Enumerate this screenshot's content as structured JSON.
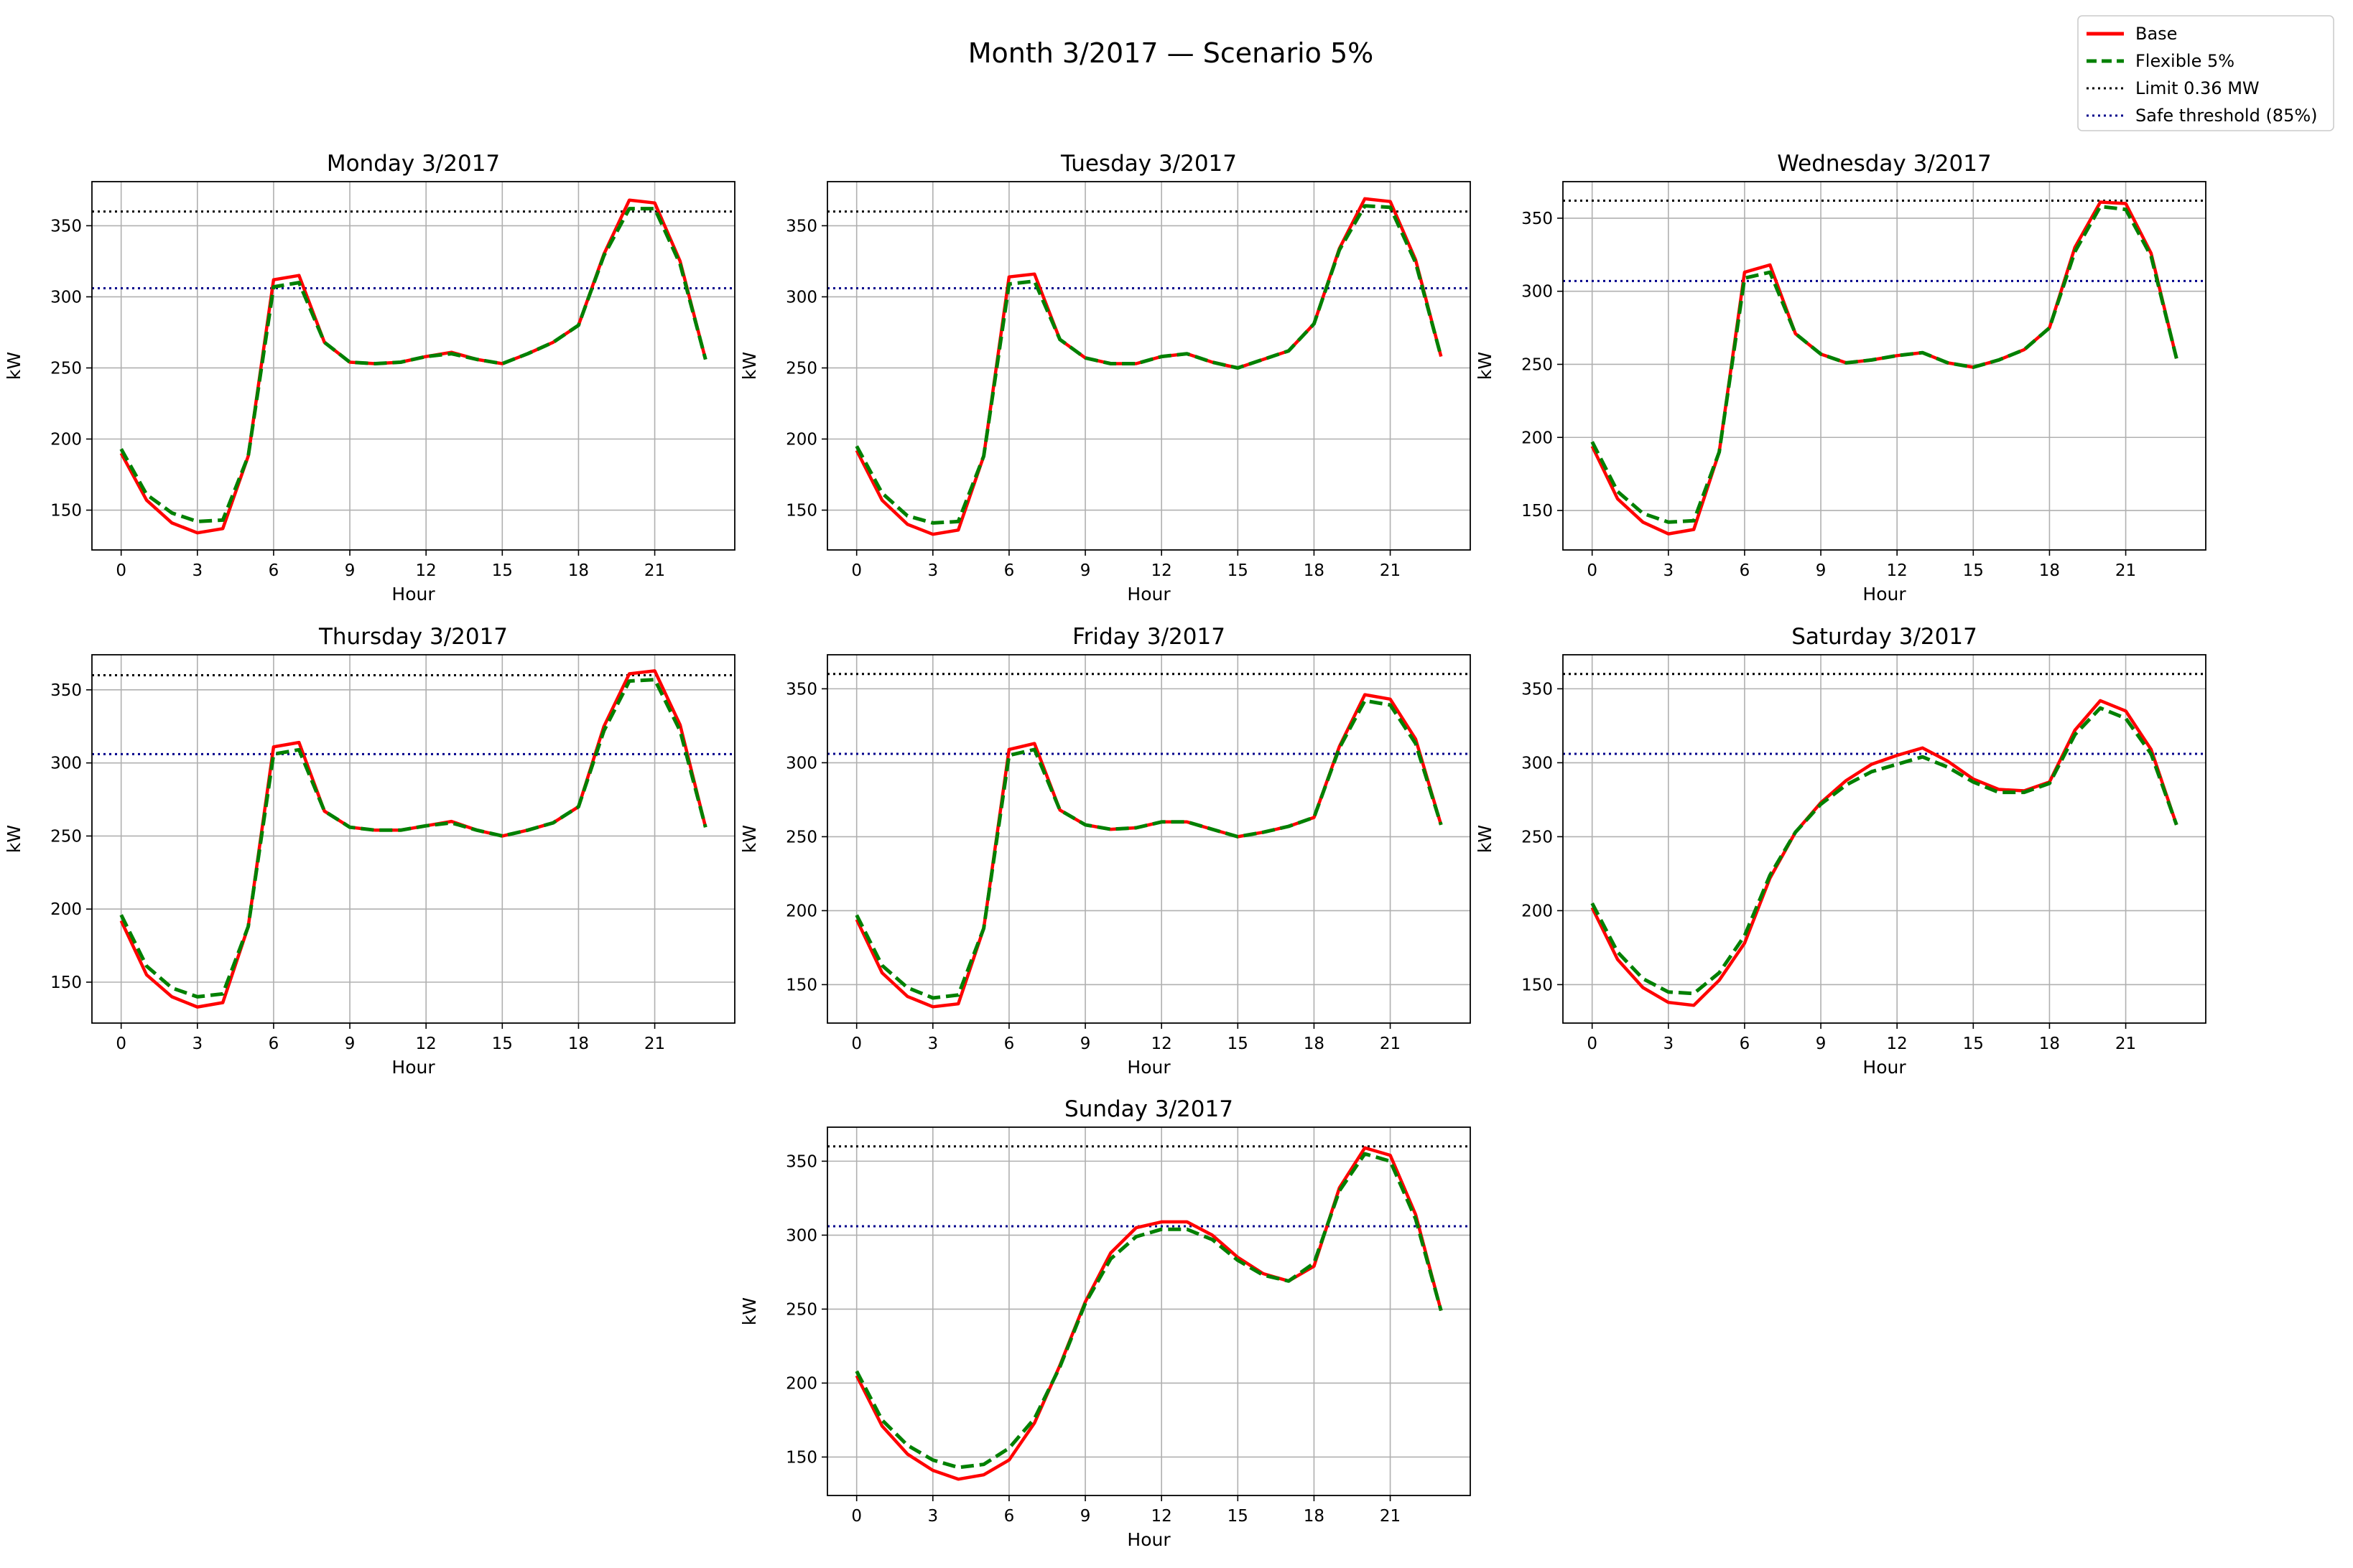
{
  "figure": {
    "title": "Month 3/2017 — Scenario 5%",
    "legend": {
      "placement": "top-right",
      "entries": [
        {
          "label": "Base",
          "color": "#ff0000",
          "style": "solid"
        },
        {
          "label": "Flexible 5%",
          "color": "#008000",
          "style": "dashed"
        },
        {
          "label": "Limit 0.36 MW",
          "color": "#000000",
          "style": "dotted"
        },
        {
          "label": "Safe threshold (85%)",
          "color": "#00008b",
          "style": "dotted"
        }
      ]
    }
  },
  "chart_data": [
    {
      "type": "line",
      "title": "Monday 3/2017",
      "xlabel": "Hour",
      "ylabel": "kW",
      "x": [
        0,
        1,
        2,
        3,
        4,
        5,
        6,
        7,
        8,
        9,
        10,
        11,
        12,
        13,
        14,
        15,
        16,
        17,
        18,
        19,
        20,
        21,
        22,
        23
      ],
      "xticks": [
        0,
        3,
        6,
        9,
        12,
        15,
        18,
        21
      ],
      "yticks": [
        150,
        200,
        250,
        300,
        350
      ],
      "xlim": [
        -1.15,
        24.15
      ],
      "ylim": [
        122,
        381
      ],
      "grid": true,
      "reference_lines": [
        {
          "name": "Limit 0.36 MW",
          "y": 360
        },
        {
          "name": "Safe threshold (85%)",
          "y": 306
        }
      ],
      "series": [
        {
          "name": "Base",
          "values": [
            190,
            157,
            141,
            134,
            137,
            188,
            312,
            315,
            268,
            254,
            253,
            254,
            258,
            261,
            256,
            253,
            260,
            268,
            280,
            330,
            368,
            366,
            325,
            256
          ]
        },
        {
          "name": "Flexible 5%",
          "values": [
            193,
            161,
            148,
            142,
            143,
            188,
            307,
            310,
            268,
            254,
            253,
            254,
            258,
            260,
            256,
            253,
            260,
            268,
            280,
            329,
            362,
            362,
            323,
            256
          ]
        }
      ]
    },
    {
      "type": "line",
      "title": "Tuesday 3/2017",
      "xlabel": "Hour",
      "ylabel": "kW",
      "x": [
        0,
        1,
        2,
        3,
        4,
        5,
        6,
        7,
        8,
        9,
        10,
        11,
        12,
        13,
        14,
        15,
        16,
        17,
        18,
        19,
        20,
        21,
        22,
        23
      ],
      "xticks": [
        0,
        3,
        6,
        9,
        12,
        15,
        18,
        21
      ],
      "yticks": [
        150,
        200,
        250,
        300,
        350
      ],
      "xlim": [
        -1.15,
        24.15
      ],
      "ylim": [
        122,
        381
      ],
      "grid": true,
      "reference_lines": [
        {
          "name": "Limit 0.36 MW",
          "y": 360
        },
        {
          "name": "Safe threshold (85%)",
          "y": 306
        }
      ],
      "series": [
        {
          "name": "Base",
          "values": [
            192,
            157,
            140,
            133,
            136,
            188,
            314,
            316,
            270,
            257,
            253,
            253,
            258,
            260,
            254,
            250,
            256,
            262,
            281,
            334,
            369,
            367,
            326,
            258
          ]
        },
        {
          "name": "Flexible 5%",
          "values": [
            195,
            162,
            146,
            141,
            142,
            188,
            309,
            311,
            270,
            257,
            253,
            253,
            258,
            260,
            254,
            250,
            256,
            262,
            281,
            333,
            364,
            363,
            324,
            258
          ]
        }
      ]
    },
    {
      "type": "line",
      "title": "Wednesday 3/2017",
      "xlabel": "Hour",
      "ylabel": "kW",
      "x": [
        0,
        1,
        2,
        3,
        4,
        5,
        6,
        7,
        8,
        9,
        10,
        11,
        12,
        13,
        14,
        15,
        16,
        17,
        18,
        19,
        20,
        21,
        22,
        23
      ],
      "xticks": [
        0,
        3,
        6,
        9,
        12,
        15,
        18,
        21
      ],
      "yticks": [
        150,
        200,
        250,
        300,
        350
      ],
      "xlim": [
        -1.15,
        24.15
      ],
      "ylim": [
        123,
        375
      ],
      "grid": true,
      "reference_lines": [
        {
          "name": "Limit 0.36 MW",
          "y": 362
        },
        {
          "name": "Safe threshold (85%)",
          "y": 307
        }
      ],
      "series": [
        {
          "name": "Base",
          "values": [
            194,
            158,
            142,
            134,
            137,
            190,
            313,
            318,
            271,
            257,
            251,
            253,
            256,
            258,
            251,
            248,
            253,
            260,
            275,
            330,
            361,
            360,
            326,
            254
          ]
        },
        {
          "name": "Flexible 5%",
          "values": [
            197,
            163,
            148,
            142,
            143,
            190,
            309,
            313,
            271,
            257,
            251,
            253,
            256,
            258,
            251,
            248,
            253,
            260,
            275,
            327,
            358,
            356,
            324,
            254
          ]
        }
      ]
    },
    {
      "type": "line",
      "title": "Thursday 3/2017",
      "xlabel": "Hour",
      "ylabel": "kW",
      "x": [
        0,
        1,
        2,
        3,
        4,
        5,
        6,
        7,
        8,
        9,
        10,
        11,
        12,
        13,
        14,
        15,
        16,
        17,
        18,
        19,
        20,
        21,
        22,
        23
      ],
      "xticks": [
        0,
        3,
        6,
        9,
        12,
        15,
        18,
        21
      ],
      "yticks": [
        150,
        200,
        250,
        300,
        350
      ],
      "xlim": [
        -1.15,
        24.15
      ],
      "ylim": [
        122,
        374
      ],
      "grid": true,
      "reference_lines": [
        {
          "name": "Limit 0.36 MW",
          "y": 360
        },
        {
          "name": "Safe threshold (85%)",
          "y": 306
        }
      ],
      "series": [
        {
          "name": "Base",
          "values": [
            192,
            155,
            140,
            133,
            136,
            188,
            311,
            314,
            267,
            256,
            254,
            254,
            257,
            260,
            254,
            250,
            254,
            259,
            270,
            325,
            361,
            363,
            326,
            256
          ]
        },
        {
          "name": "Flexible 5%",
          "values": [
            196,
            161,
            146,
            140,
            142,
            188,
            306,
            309,
            267,
            256,
            254,
            254,
            257,
            259,
            254,
            250,
            254,
            259,
            270,
            322,
            356,
            357,
            322,
            256
          ]
        }
      ]
    },
    {
      "type": "line",
      "title": "Friday 3/2017",
      "xlabel": "Hour",
      "ylabel": "kW",
      "x": [
        0,
        1,
        2,
        3,
        4,
        5,
        6,
        7,
        8,
        9,
        10,
        11,
        12,
        13,
        14,
        15,
        16,
        17,
        18,
        19,
        20,
        21,
        22,
        23
      ],
      "xticks": [
        0,
        3,
        6,
        9,
        12,
        15,
        18,
        21
      ],
      "yticks": [
        150,
        200,
        250,
        300,
        350
      ],
      "xlim": [
        -1.15,
        24.15
      ],
      "ylim": [
        124,
        373
      ],
      "grid": true,
      "reference_lines": [
        {
          "name": "Limit 0.36 MW",
          "y": 360
        },
        {
          "name": "Safe threshold (85%)",
          "y": 306
        }
      ],
      "series": [
        {
          "name": "Base",
          "values": [
            194,
            158,
            142,
            135,
            137,
            188,
            309,
            313,
            268,
            258,
            255,
            256,
            260,
            260,
            255,
            250,
            253,
            257,
            263,
            311,
            346,
            343,
            316,
            258
          ]
        },
        {
          "name": "Flexible 5%",
          "values": [
            197,
            163,
            148,
            141,
            143,
            188,
            305,
            309,
            268,
            258,
            255,
            256,
            260,
            260,
            255,
            250,
            253,
            257,
            263,
            310,
            342,
            339,
            313,
            258
          ]
        }
      ]
    },
    {
      "type": "line",
      "title": "Saturday 3/2017",
      "xlabel": "Hour",
      "ylabel": "kW",
      "x": [
        0,
        1,
        2,
        3,
        4,
        5,
        6,
        7,
        8,
        9,
        10,
        11,
        12,
        13,
        14,
        15,
        16,
        17,
        18,
        19,
        20,
        21,
        22,
        23
      ],
      "xticks": [
        0,
        3,
        6,
        9,
        12,
        15,
        18,
        21
      ],
      "yticks": [
        150,
        200,
        250,
        300,
        350
      ],
      "xlim": [
        -1.15,
        24.15
      ],
      "ylim": [
        124,
        373
      ],
      "grid": true,
      "reference_lines": [
        {
          "name": "Limit 0.36 MW",
          "y": 360
        },
        {
          "name": "Safe threshold (85%)",
          "y": 306
        }
      ],
      "series": [
        {
          "name": "Base",
          "values": [
            202,
            167,
            148,
            138,
            136,
            153,
            178,
            222,
            253,
            273,
            288,
            299,
            305,
            310,
            301,
            289,
            282,
            281,
            287,
            322,
            342,
            335,
            309,
            258
          ]
        },
        {
          "name": "Flexible 5%",
          "values": [
            205,
            172,
            154,
            145,
            144,
            158,
            183,
            224,
            253,
            272,
            285,
            294,
            299,
            304,
            297,
            287,
            280,
            280,
            286,
            319,
            337,
            330,
            306,
            258
          ]
        }
      ]
    },
    {
      "type": "line",
      "title": "Sunday 3/2017",
      "xlabel": "Hour",
      "ylabel": "kW",
      "x": [
        0,
        1,
        2,
        3,
        4,
        5,
        6,
        7,
        8,
        9,
        10,
        11,
        12,
        13,
        14,
        15,
        16,
        17,
        18,
        19,
        20,
        21,
        22,
        23
      ],
      "xticks": [
        0,
        3,
        6,
        9,
        12,
        15,
        18,
        21
      ],
      "yticks": [
        150,
        200,
        250,
        300,
        350
      ],
      "xlim": [
        -1.15,
        24.15
      ],
      "ylim": [
        124,
        373
      ],
      "grid": true,
      "reference_lines": [
        {
          "name": "Limit 0.36 MW",
          "y": 360
        },
        {
          "name": "Safe threshold (85%)",
          "y": 306
        }
      ],
      "series": [
        {
          "name": "Base",
          "values": [
            205,
            171,
            152,
            141,
            135,
            138,
            148,
            173,
            212,
            255,
            288,
            305,
            309,
            309,
            300,
            285,
            274,
            269,
            279,
            332,
            359,
            354,
            314,
            249
          ]
        },
        {
          "name": "Flexible 5%",
          "values": [
            208,
            175,
            158,
            148,
            143,
            145,
            156,
            176,
            211,
            254,
            284,
            299,
            304,
            304,
            297,
            283,
            273,
            269,
            281,
            330,
            355,
            350,
            311,
            249
          ]
        }
      ]
    }
  ]
}
